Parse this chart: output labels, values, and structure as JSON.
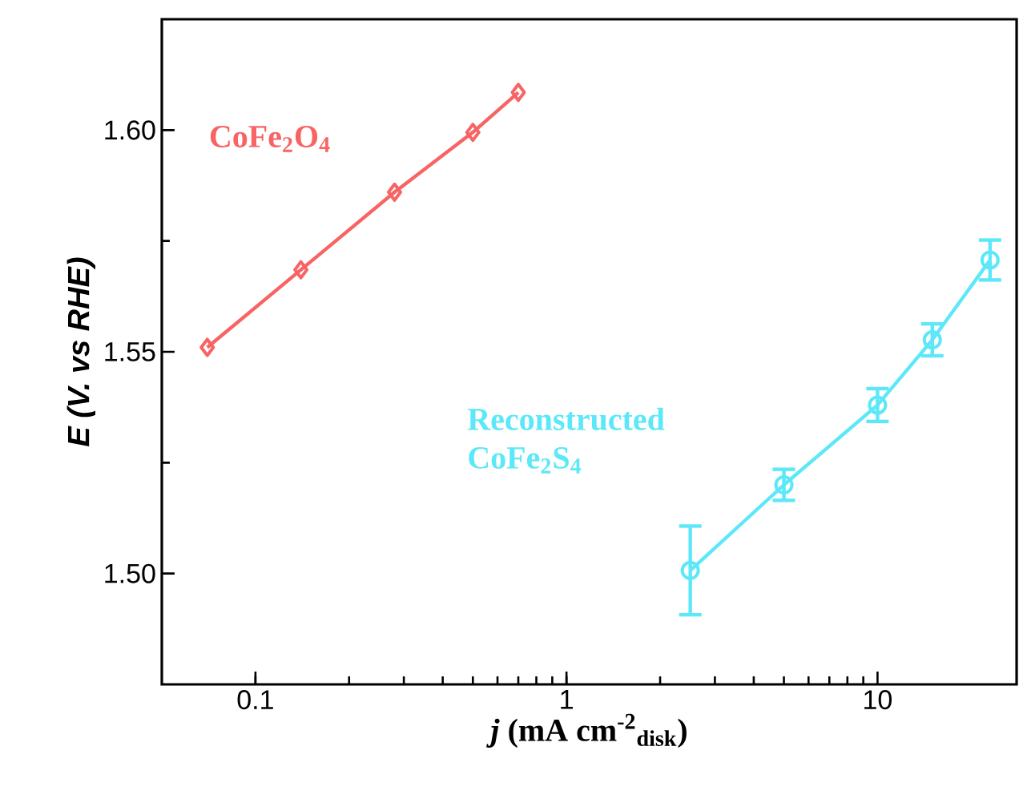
{
  "chart_data": {
    "type": "line",
    "xlabel": "*j* (mA cm$^{-2}$$_{disk}$)",
    "ylabel": "E (V. vs RHE)",
    "log": "x",
    "xlim": [
      0.05,
      28
    ],
    "xticks": [
      0.1,
      1,
      10
    ],
    "ylim": [
      1.475,
      1.625
    ],
    "yticks": [
      {
        "value": 1.5,
        "label": "1.50"
      },
      {
        "value": 1.55,
        "label": "1.55"
      },
      {
        "value": 1.6,
        "label": "1.60"
      }
    ],
    "series": [
      {
        "name": "CoFe$_{2}$O$_{4}$",
        "color": "#f86464",
        "marker": "diamond",
        "x": [
          0.07,
          0.14,
          0.28,
          0.5,
          0.7
        ],
        "values": [
          1.551,
          1.5685,
          1.586,
          1.5995,
          1.6085
        ]
      },
      {
        "name": "Reconstructed CoFe$_{2}$S$_{4}$",
        "color": "#5ce8f8",
        "marker": "circle",
        "x": [
          2.5,
          5,
          10,
          15,
          23
        ],
        "values": [
          1.5007,
          1.52,
          1.538,
          1.5527,
          1.5707
        ],
        "errors": [
          0.01,
          0.0035,
          0.0037,
          0.0036,
          0.0045
        ]
      }
    ]
  }
}
